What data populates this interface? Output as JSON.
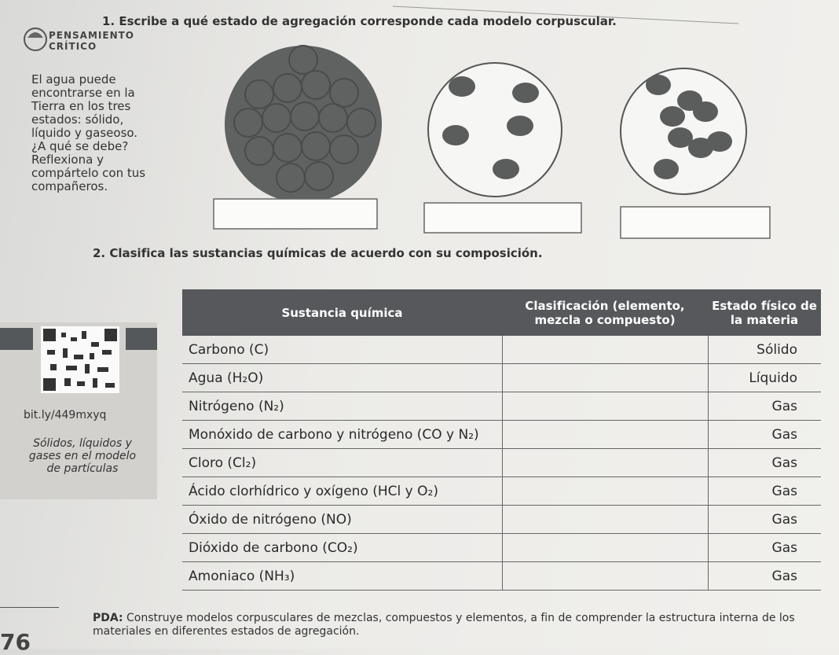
{
  "exercise1": {
    "prompt": "1. Escribe a qué estado de agregación corresponde cada modelo corpuscular."
  },
  "sidebar": {
    "badge_line1": "PENSAMIENTO",
    "badge_line2": "CRÍTICO",
    "text": "El agua puede encontrarse en la Tierra en los tres estados: sólido, líquido y gaseoso. ¿A qué se debe? Reflexiona y compártelo con tus compañeros."
  },
  "exercise2": {
    "prompt": "2. Clasifica las sustancias químicas de acuerdo con su composición."
  },
  "table": {
    "headers": [
      "Sustancia química",
      "Clasificación (elemento, mezcla o compuesto)",
      "Estado físico de la materia"
    ],
    "rows": [
      {
        "substance": "Carbono (C)",
        "state": "Sólido"
      },
      {
        "substance": "Agua (H₂O)",
        "state": "Líquido"
      },
      {
        "substance": "Nitrógeno (N₂)",
        "state": "Gas"
      },
      {
        "substance": "Monóxido de carbono y nitrógeno (CO y N₂)",
        "state": "Gas"
      },
      {
        "substance": "Cloro (Cl₂)",
        "state": "Gas"
      },
      {
        "substance": "Ácido clorhídrico y oxígeno (HCl y O₂)",
        "state": "Gas"
      },
      {
        "substance": "Óxido de nitrógeno (NO)",
        "state": "Gas"
      },
      {
        "substance": "Dióxido de carbono (CO₂)",
        "state": "Gas"
      },
      {
        "substance": "Amoniaco (NH₃)",
        "state": "Gas"
      }
    ]
  },
  "resource": {
    "link": "bit.ly/449mxyq",
    "caption": "Sólidos, líquidos y gases en el modelo de partículas"
  },
  "footer": {
    "page_number": "76",
    "pda_label": "PDA:",
    "pda_text": "Construye modelos corpusculares de mezclas, compuestos y elementos, a fin de comprender la estructura interna de los materiales en diferentes estados de agregación."
  }
}
